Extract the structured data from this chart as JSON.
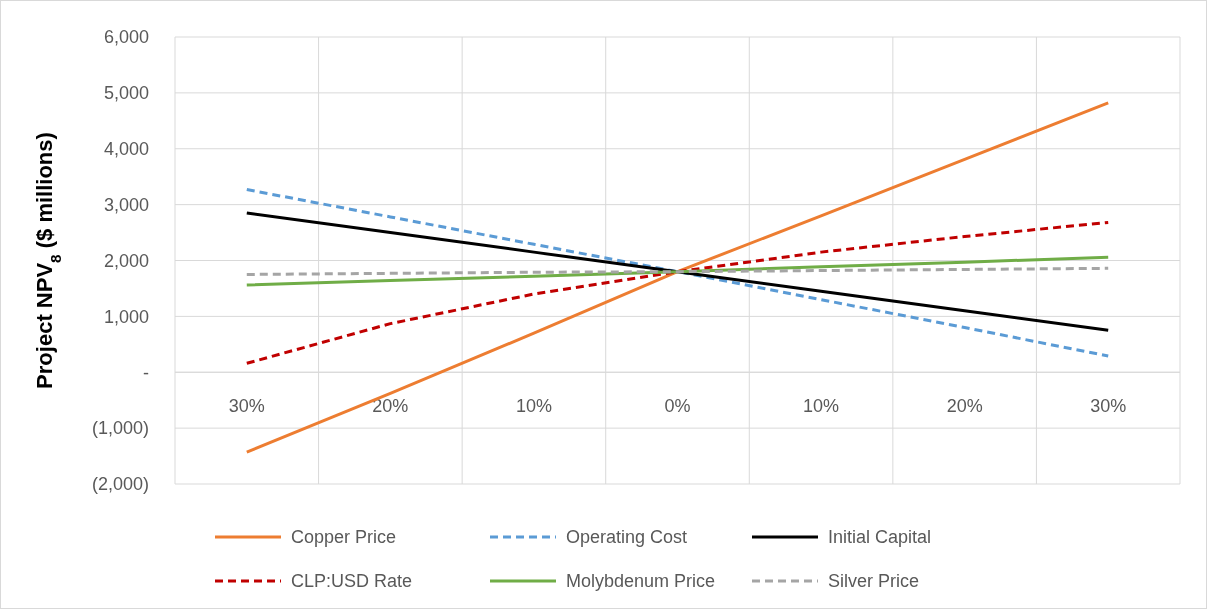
{
  "chart_data": {
    "type": "line",
    "ylabel": "Project NPV$_{8}$ ($ millions)",
    "categories": [
      "30%",
      "20%",
      "10%",
      "0%",
      "10%",
      "20%",
      "30%"
    ],
    "series": [
      {
        "name": "Copper Price",
        "color": "#ed7d31",
        "line_style": "solid",
        "values": [
          -1430,
          -380,
          700,
          1800,
          2800,
          3810,
          4820
        ]
      },
      {
        "name": "Operating Cost",
        "color": "#5b9bd5",
        "line_style": "dashed",
        "values": [
          3270,
          2780,
          2290,
          1800,
          1300,
          800,
          290
        ]
      },
      {
        "name": "Initial Capital",
        "color": "#000000",
        "line_style": "solid",
        "values": [
          2850,
          2500,
          2150,
          1800,
          1450,
          1100,
          750
        ]
      },
      {
        "name": "CLP:USD Rate",
        "color": "#c00000",
        "line_style": "dashed",
        "values": [
          160,
          870,
          1400,
          1800,
          2150,
          2430,
          2680
        ]
      },
      {
        "name": "Molybdenum Price",
        "color": "#70ad47",
        "line_style": "solid",
        "values": [
          1560,
          1640,
          1720,
          1800,
          1890,
          1970,
          2060
        ]
      },
      {
        "name": "Silver Price",
        "color": "#a5a5a5",
        "line_style": "dashed",
        "values": [
          1750,
          1770,
          1790,
          1800,
          1820,
          1840,
          1860
        ]
      }
    ],
    "ylim": [
      -2000,
      6000
    ],
    "yticks": [
      {
        "value": -2000,
        "label": "(2,000)"
      },
      {
        "value": -1000,
        "label": "(1,000)"
      },
      {
        "value": 0,
        "label": "-"
      },
      {
        "value": 1000,
        "label": "1,000"
      },
      {
        "value": 2000,
        "label": "2,000"
      },
      {
        "value": 3000,
        "label": "3,000"
      },
      {
        "value": 4000,
        "label": "4,000"
      },
      {
        "value": 5000,
        "label": "5,000"
      },
      {
        "value": 6000,
        "label": "6,000"
      }
    ],
    "grid": true,
    "legend": "bottom"
  }
}
